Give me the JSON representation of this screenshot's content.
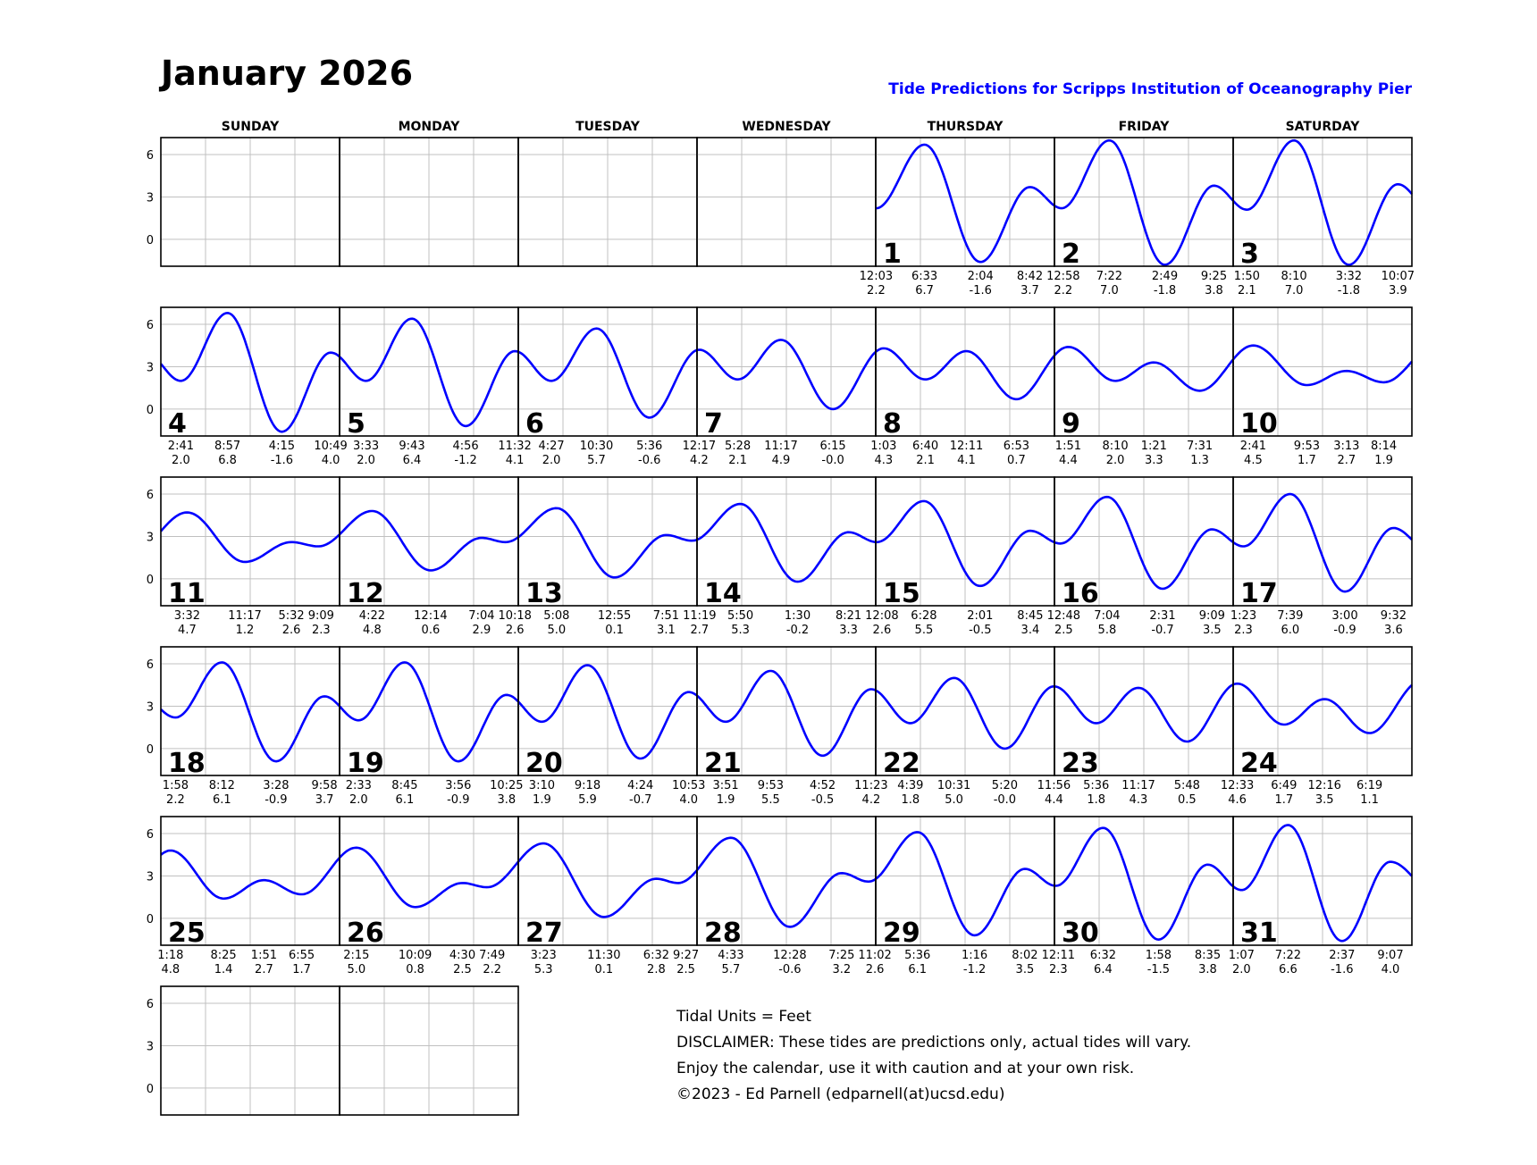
{
  "header": {
    "title": "January 2026",
    "subtitle": "Tide Predictions for Scripps Institution of Oceanography Pier"
  },
  "footer": {
    "lines": [
      "Tidal Units = Feet",
      "DISCLAIMER: These tides are predictions only, actual tides will vary.",
      "Enjoy the calendar, use it with caution and at your own risk.",
      "©2023 - Ed Parnell (edparnell(at)ucsd.edu)"
    ]
  },
  "colors": {
    "curve": "#0000ff",
    "grid": "#c0c0c0",
    "border": "#000000"
  },
  "chart_data": {
    "type": "line",
    "title": "Tide Predictions for Scripps Institution of Oceanography Pier",
    "ylabel": "Feet",
    "yticks": [
      "6",
      "3",
      "0"
    ],
    "ylim": [
      -1.9,
      7.2
    ],
    "weekdays": [
      "SUNDAY",
      "MONDAY",
      "TUESDAY",
      "WEDNESDAY",
      "THURSDAY",
      "FRIDAY",
      "SATURDAY"
    ],
    "first_weekday_index": 4,
    "rows": 6,
    "days": [
      {
        "day": "1",
        "tides": [
          [
            "12:03",
            "2.2"
          ],
          [
            "6:33",
            "6.7"
          ],
          [
            "2:04",
            "-1.6"
          ],
          [
            "8:42",
            "3.7"
          ]
        ]
      },
      {
        "day": "2",
        "tides": [
          [
            "12:58",
            "2.2"
          ],
          [
            "7:22",
            "7.0"
          ],
          [
            "2:49",
            "-1.8"
          ],
          [
            "9:25",
            "3.8"
          ]
        ]
      },
      {
        "day": "3",
        "tides": [
          [
            "1:50",
            "2.1"
          ],
          [
            "8:10",
            "7.0"
          ],
          [
            "3:32",
            "-1.8"
          ],
          [
            "10:07",
            "3.9"
          ]
        ]
      },
      {
        "day": "4",
        "tides": [
          [
            "2:41",
            "2.0"
          ],
          [
            "8:57",
            "6.8"
          ],
          [
            "4:15",
            "-1.6"
          ],
          [
            "10:49",
            "4.0"
          ]
        ]
      },
      {
        "day": "5",
        "tides": [
          [
            "3:33",
            "2.0"
          ],
          [
            "9:43",
            "6.4"
          ],
          [
            "4:56",
            "-1.2"
          ],
          [
            "11:32",
            "4.1"
          ]
        ]
      },
      {
        "day": "6",
        "tides": [
          [
            "4:27",
            "2.0"
          ],
          [
            "10:30",
            "5.7"
          ],
          [
            "5:36",
            "-0.6"
          ]
        ]
      },
      {
        "day": "7",
        "tides": [
          [
            "12:17",
            "4.2"
          ],
          [
            "5:28",
            "2.1"
          ],
          [
            "11:17",
            "4.9"
          ],
          [
            "6:15",
            "-0.0"
          ]
        ]
      },
      {
        "day": "8",
        "tides": [
          [
            "1:03",
            "4.3"
          ],
          [
            "6:40",
            "2.1"
          ],
          [
            "12:11",
            "4.1"
          ],
          [
            "6:53",
            "0.7"
          ]
        ]
      },
      {
        "day": "9",
        "tides": [
          [
            "1:51",
            "4.4"
          ],
          [
            "8:10",
            "2.0"
          ],
          [
            "1:21",
            "3.3"
          ],
          [
            "7:31",
            "1.3"
          ]
        ]
      },
      {
        "day": "10",
        "tides": [
          [
            "2:41",
            "4.5"
          ],
          [
            "9:53",
            "1.7"
          ],
          [
            "3:13",
            "2.7"
          ],
          [
            "8:14",
            "1.9"
          ]
        ]
      },
      {
        "day": "11",
        "tides": [
          [
            "3:32",
            "4.7"
          ],
          [
            "11:17",
            "1.2"
          ],
          [
            "5:32",
            "2.6"
          ],
          [
            "9:09",
            "2.3"
          ]
        ]
      },
      {
        "day": "12",
        "tides": [
          [
            "4:22",
            "4.8"
          ],
          [
            "12:14",
            "0.6"
          ],
          [
            "7:04",
            "2.9"
          ],
          [
            "10:18",
            "2.6"
          ]
        ]
      },
      {
        "day": "13",
        "tides": [
          [
            "5:08",
            "5.0"
          ],
          [
            "12:55",
            "0.1"
          ],
          [
            "7:51",
            "3.1"
          ],
          [
            "11:19",
            "2.7"
          ]
        ]
      },
      {
        "day": "14",
        "tides": [
          [
            "5:50",
            "5.3"
          ],
          [
            "1:30",
            "-0.2"
          ],
          [
            "8:21",
            "3.3"
          ]
        ]
      },
      {
        "day": "15",
        "tides": [
          [
            "12:08",
            "2.6"
          ],
          [
            "6:28",
            "5.5"
          ],
          [
            "2:01",
            "-0.5"
          ],
          [
            "8:45",
            "3.4"
          ]
        ]
      },
      {
        "day": "16",
        "tides": [
          [
            "12:48",
            "2.5"
          ],
          [
            "7:04",
            "5.8"
          ],
          [
            "2:31",
            "-0.7"
          ],
          [
            "9:09",
            "3.5"
          ]
        ]
      },
      {
        "day": "17",
        "tides": [
          [
            "1:23",
            "2.3"
          ],
          [
            "7:39",
            "6.0"
          ],
          [
            "3:00",
            "-0.9"
          ],
          [
            "9:32",
            "3.6"
          ]
        ]
      },
      {
        "day": "18",
        "tides": [
          [
            "1:58",
            "2.2"
          ],
          [
            "8:12",
            "6.1"
          ],
          [
            "3:28",
            "-0.9"
          ],
          [
            "9:58",
            "3.7"
          ]
        ]
      },
      {
        "day": "19",
        "tides": [
          [
            "2:33",
            "2.0"
          ],
          [
            "8:45",
            "6.1"
          ],
          [
            "3:56",
            "-0.9"
          ],
          [
            "10:25",
            "3.8"
          ]
        ]
      },
      {
        "day": "20",
        "tides": [
          [
            "3:10",
            "1.9"
          ],
          [
            "9:18",
            "5.9"
          ],
          [
            "4:24",
            "-0.7"
          ],
          [
            "10:53",
            "4.0"
          ]
        ]
      },
      {
        "day": "21",
        "tides": [
          [
            "3:51",
            "1.9"
          ],
          [
            "9:53",
            "5.5"
          ],
          [
            "4:52",
            "-0.5"
          ],
          [
            "11:23",
            "4.2"
          ]
        ]
      },
      {
        "day": "22",
        "tides": [
          [
            "4:39",
            "1.8"
          ],
          [
            "10:31",
            "5.0"
          ],
          [
            "5:20",
            "-0.0"
          ],
          [
            "11:56",
            "4.4"
          ]
        ]
      },
      {
        "day": "23",
        "tides": [
          [
            "5:36",
            "1.8"
          ],
          [
            "11:17",
            "4.3"
          ],
          [
            "5:48",
            "0.5"
          ]
        ]
      },
      {
        "day": "24",
        "tides": [
          [
            "12:33",
            "4.6"
          ],
          [
            "6:49",
            "1.7"
          ],
          [
            "12:16",
            "3.5"
          ],
          [
            "6:19",
            "1.1"
          ]
        ]
      },
      {
        "day": "25",
        "tides": [
          [
            "1:18",
            "4.8"
          ],
          [
            "8:25",
            "1.4"
          ],
          [
            "1:51",
            "2.7"
          ],
          [
            "6:55",
            "1.7"
          ]
        ]
      },
      {
        "day": "26",
        "tides": [
          [
            "2:15",
            "5.0"
          ],
          [
            "10:09",
            "0.8"
          ],
          [
            "4:30",
            "2.5"
          ],
          [
            "7:49",
            "2.2"
          ]
        ]
      },
      {
        "day": "27",
        "tides": [
          [
            "3:23",
            "5.3"
          ],
          [
            "11:30",
            "0.1"
          ],
          [
            "6:32",
            "2.8"
          ],
          [
            "9:27",
            "2.5"
          ]
        ]
      },
      {
        "day": "28",
        "tides": [
          [
            "4:33",
            "5.7"
          ],
          [
            "12:28",
            "-0.6"
          ],
          [
            "7:25",
            "3.2"
          ],
          [
            "11:02",
            "2.6"
          ]
        ]
      },
      {
        "day": "29",
        "tides": [
          [
            "5:36",
            "6.1"
          ],
          [
            "1:16",
            "-1.2"
          ],
          [
            "8:02",
            "3.5"
          ]
        ]
      },
      {
        "day": "30",
        "tides": [
          [
            "12:11",
            "2.3"
          ],
          [
            "6:32",
            "6.4"
          ],
          [
            "1:58",
            "-1.5"
          ],
          [
            "8:35",
            "3.8"
          ]
        ]
      },
      {
        "day": "31",
        "tides": [
          [
            "1:07",
            "2.0"
          ],
          [
            "7:22",
            "6.6"
          ],
          [
            "2:37",
            "-1.6"
          ],
          [
            "9:07",
            "4.0"
          ]
        ]
      }
    ]
  }
}
